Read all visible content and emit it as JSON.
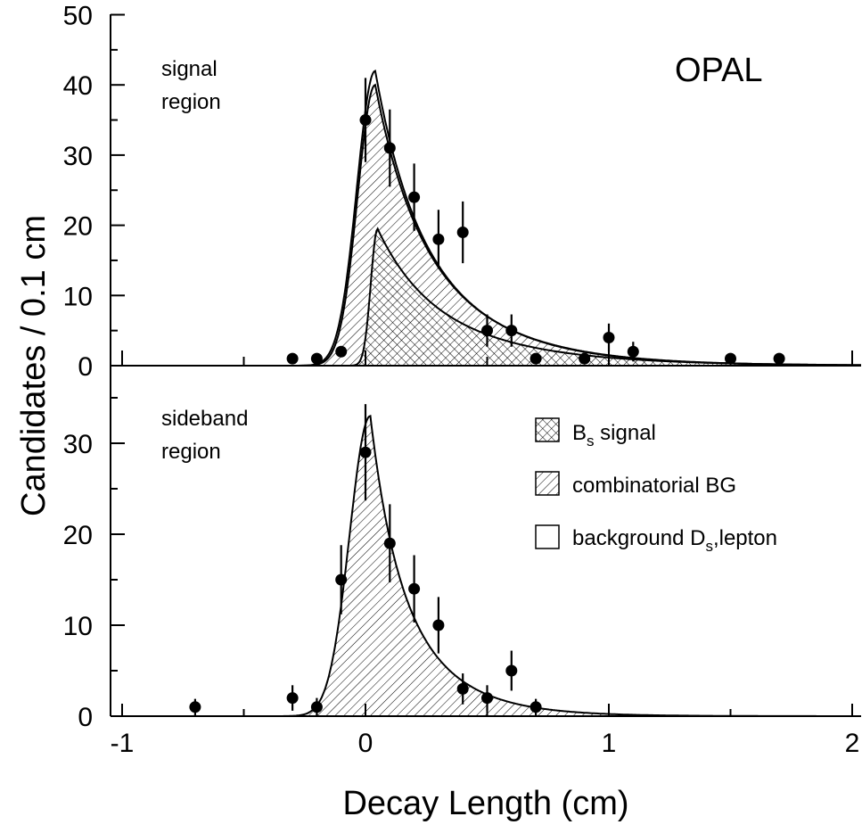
{
  "chart_data": [
    {
      "type": "scatter",
      "panel": "upper",
      "experiment_label": "OPAL",
      "region_label": [
        "signal",
        "region"
      ],
      "ylabel": "Candidates / 0.1 cm",
      "xlim": [
        -1.05,
        2.05
      ],
      "ylim": [
        0,
        50
      ],
      "yticks": [
        "0",
        "10",
        "20",
        "30",
        "40",
        "50"
      ],
      "points": {
        "x": [
          -0.3,
          -0.2,
          -0.1,
          0.0,
          0.1,
          0.2,
          0.3,
          0.4,
          0.5,
          0.6,
          0.7,
          0.9,
          1.0,
          1.1,
          1.5,
          1.7
        ],
        "y": [
          1,
          1,
          2,
          35,
          31,
          24,
          18,
          19,
          5,
          5,
          1,
          1,
          4,
          2,
          1,
          1
        ],
        "err": [
          0,
          0,
          0.8,
          6,
          5.5,
          4.8,
          4.2,
          4.4,
          2.3,
          2.3,
          0,
          0,
          2,
          1.4,
          0,
          0
        ]
      },
      "curves": [
        {
          "name": "total",
          "peak_x": 0.04,
          "peak_y": 42
        },
        {
          "name": "combinatorial BG + Bs signal",
          "peak_x": 0.04,
          "peak_y": 40
        },
        {
          "name": "Bs signal",
          "peak_x": 0.05,
          "peak_y": 19.5
        }
      ]
    },
    {
      "type": "scatter",
      "panel": "lower",
      "region_label": [
        "sideband",
        "region"
      ],
      "xlabel": "Decay Length (cm)",
      "xlim": [
        -1.05,
        2.05
      ],
      "ylim": [
        0,
        38
      ],
      "xticks": [
        "-1",
        "0",
        "1",
        "2"
      ],
      "yticks": [
        "0",
        "10",
        "20",
        "30"
      ],
      "points": {
        "x": [
          -0.7,
          -0.3,
          -0.2,
          -0.1,
          0.0,
          0.1,
          0.2,
          0.3,
          0.4,
          0.5,
          0.6,
          0.7
        ],
        "y": [
          1,
          2,
          1,
          15,
          29,
          19,
          14,
          10,
          3,
          2,
          5,
          1
        ],
        "err": [
          0.9,
          1.4,
          1,
          3.8,
          5.3,
          4.3,
          3.7,
          3.1,
          1.7,
          1.4,
          2.2,
          0.9
        ]
      },
      "curves": [
        {
          "name": "total",
          "peak_x": 0.02,
          "peak_y": 33
        }
      ],
      "legend": [
        {
          "pattern": "crosshatch",
          "label_main": "B",
          "label_sub": "s",
          "label_rest": " signal"
        },
        {
          "pattern": "diagonal",
          "label_main": "combinatorial BG",
          "label_sub": "",
          "label_rest": ""
        },
        {
          "pattern": "empty",
          "label_main": "background D",
          "label_sub": "s",
          "label_rest": ",lepton"
        }
      ]
    }
  ]
}
